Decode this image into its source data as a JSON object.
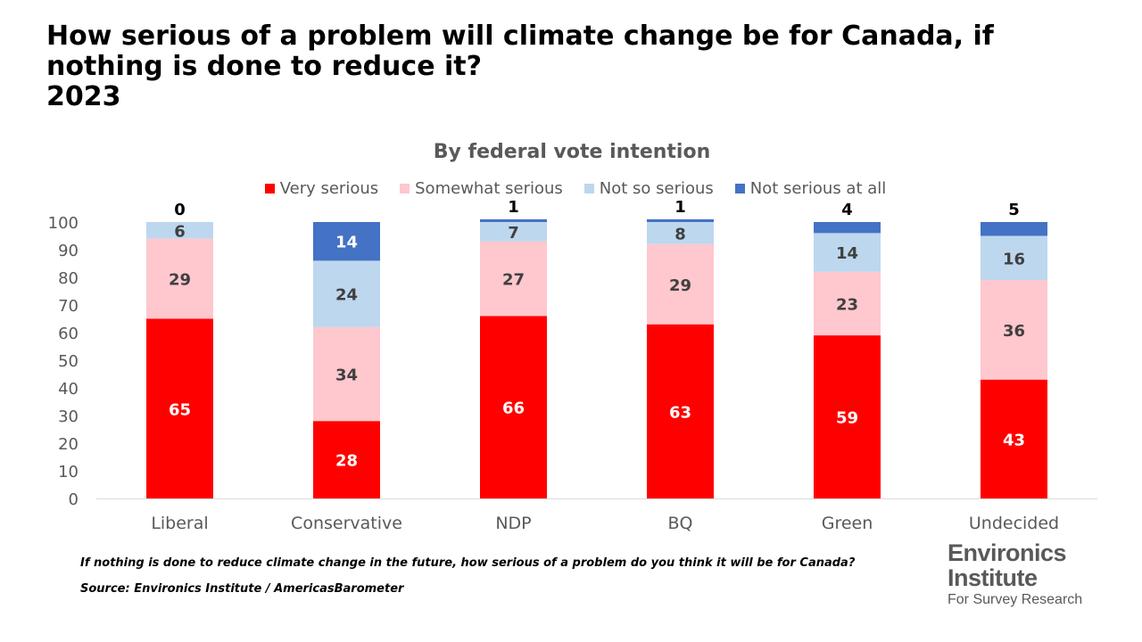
{
  "title": "How serious of a problem will climate change be for Canada, if nothing is done to reduce it?",
  "year": "2023",
  "subtitle": "By federal vote intention",
  "footnote_question": "If nothing is done to reduce climate change in the future, how serious of a problem do you think it will be for Canada?",
  "footnote_source": "Source: Environics Institute / AmericasBarometer",
  "logo": {
    "line1": "Environics",
    "line2": "Institute",
    "line3": "For Survey Research"
  },
  "colors": {
    "very_serious": "#ff0000",
    "somewhat_serious": "#ffc7ce",
    "not_so_serious": "#bdd7ee",
    "not_serious_at_all": "#4472c4"
  },
  "chart_data": {
    "type": "bar",
    "stacked": true,
    "categories": [
      "Liberal",
      "Conservative",
      "NDP",
      "BQ",
      "Green",
      "Undecided"
    ],
    "series": [
      {
        "name": "Very serious",
        "values": [
          65,
          28,
          66,
          63,
          59,
          43
        ]
      },
      {
        "name": "Somewhat serious",
        "values": [
          29,
          34,
          27,
          29,
          23,
          36
        ]
      },
      {
        "name": "Not so serious",
        "values": [
          6,
          24,
          7,
          8,
          14,
          16
        ]
      },
      {
        "name": "Not serious at all",
        "values": [
          0,
          14,
          1,
          1,
          4,
          5
        ]
      }
    ],
    "yticks": [
      "0",
      "10",
      "20",
      "30",
      "40",
      "50",
      "60",
      "70",
      "80",
      "90",
      "100"
    ],
    "ylim": [
      0,
      100
    ],
    "legend": "top",
    "grid": false
  }
}
